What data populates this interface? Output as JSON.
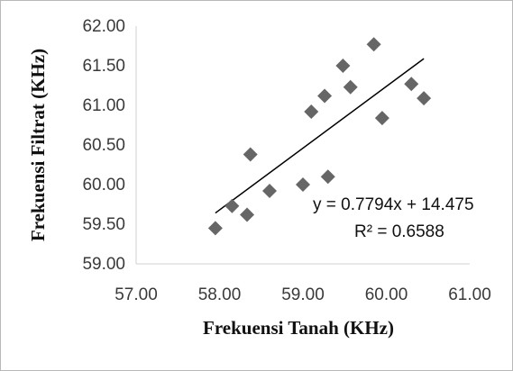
{
  "chart_data": {
    "type": "scatter",
    "xlabel": "Frekuensi Tanah (KHz)",
    "ylabel": "Frekuensi Filtrat (KHz)",
    "xlim": [
      57.0,
      61.0
    ],
    "ylim": [
      59.0,
      62.0
    ],
    "x_ticks": [
      "57.00",
      "58.00",
      "59.00",
      "60.00",
      "61.00"
    ],
    "y_ticks": [
      "59.00",
      "59.50",
      "60.00",
      "60.50",
      "61.00",
      "61.50",
      "62.00"
    ],
    "grid": false,
    "marker": "diamond",
    "marker_color": "#666666",
    "points": [
      {
        "x": 57.95,
        "y": 59.45
      },
      {
        "x": 58.15,
        "y": 59.73
      },
      {
        "x": 58.33,
        "y": 59.62
      },
      {
        "x": 58.37,
        "y": 60.38
      },
      {
        "x": 58.6,
        "y": 59.92
      },
      {
        "x": 59.0,
        "y": 60.0
      },
      {
        "x": 59.1,
        "y": 60.92
      },
      {
        "x": 59.26,
        "y": 61.12
      },
      {
        "x": 59.3,
        "y": 60.1
      },
      {
        "x": 59.48,
        "y": 61.5
      },
      {
        "x": 59.57,
        "y": 61.23
      },
      {
        "x": 59.85,
        "y": 61.77
      },
      {
        "x": 59.95,
        "y": 60.84
      },
      {
        "x": 60.3,
        "y": 61.27
      },
      {
        "x": 60.45,
        "y": 61.09
      }
    ],
    "trendline": {
      "slope": 0.7794,
      "intercept": 14.475,
      "x_range": [
        57.95,
        60.45
      ],
      "color": "#000000",
      "equation": "y = 0.7794x + 14.475",
      "r_squared": "R² = 0.6588"
    }
  }
}
